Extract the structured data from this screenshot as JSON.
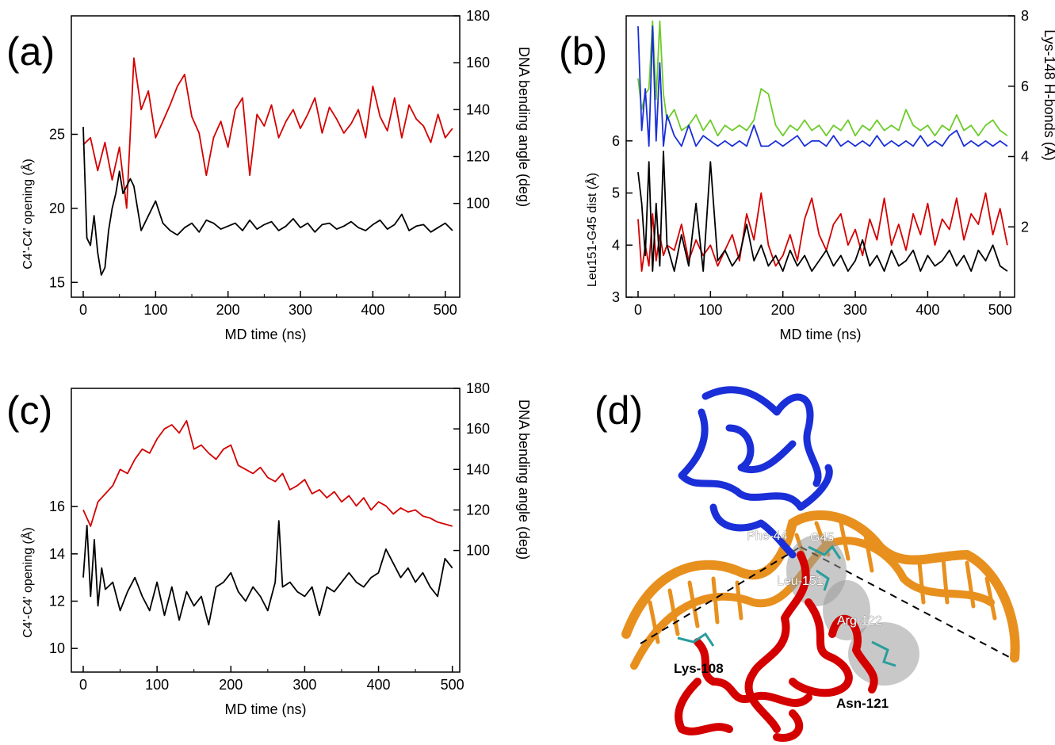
{
  "figure": {
    "panel_labels": [
      "(a)",
      "(b)",
      "(c)",
      "(d)"
    ]
  },
  "chart_data": [
    {
      "panel": "(a)",
      "type": "line",
      "xlabel": "MD time (ns)",
      "ylabel_left": "C4'-C4' opening (Å)",
      "ylabel_right": "DNA bending angle (deg)",
      "xlim": [
        0,
        520
      ],
      "ylim_left": [
        14,
        33
      ],
      "ylim_right": [
        60,
        180
      ],
      "xticks": [
        0,
        100,
        200,
        300,
        400,
        500
      ],
      "yticks_left": [
        15,
        20,
        25
      ],
      "yticks_right": [
        100,
        120,
        140,
        160,
        180
      ],
      "colors": {
        "bending": "#d40000",
        "opening": "#000000"
      },
      "series": [
        {
          "axis": "right",
          "color": "#d40000",
          "x": [
            0,
            10,
            20,
            30,
            40,
            50,
            60,
            70,
            80,
            90,
            100,
            110,
            120,
            130,
            140,
            150,
            160,
            170,
            180,
            190,
            200,
            210,
            220,
            230,
            240,
            250,
            260,
            270,
            280,
            290,
            300,
            310,
            320,
            330,
            340,
            350,
            360,
            370,
            380,
            390,
            400,
            410,
            420,
            430,
            440,
            450,
            460,
            470,
            480,
            490,
            500,
            510
          ],
          "values": [
            125,
            128,
            114,
            126,
            110,
            124,
            98,
            162,
            140,
            148,
            128,
            135,
            142,
            150,
            155,
            137,
            130,
            112,
            128,
            135,
            124,
            140,
            145,
            112,
            138,
            133,
            142,
            128,
            135,
            140,
            132,
            138,
            145,
            130,
            141,
            136,
            130,
            134,
            140,
            128,
            150,
            137,
            131,
            145,
            128,
            142,
            136,
            133,
            126,
            138,
            128,
            132
          ]
        },
        {
          "axis": "left",
          "color": "#000000",
          "x": [
            0,
            5,
            10,
            15,
            20,
            25,
            30,
            35,
            40,
            45,
            50,
            55,
            60,
            65,
            70,
            75,
            80,
            90,
            100,
            110,
            120,
            130,
            140,
            150,
            160,
            170,
            180,
            190,
            200,
            210,
            220,
            230,
            240,
            250,
            260,
            270,
            280,
            290,
            300,
            310,
            320,
            330,
            340,
            350,
            360,
            370,
            380,
            390,
            400,
            410,
            420,
            430,
            440,
            450,
            460,
            470,
            480,
            490,
            500,
            510
          ],
          "values": [
            25.5,
            18,
            17.5,
            19.5,
            17,
            15.5,
            16,
            18.5,
            20,
            21,
            22.5,
            21,
            21.5,
            22,
            21.5,
            20,
            18.5,
            19.5,
            20.5,
            19,
            18.5,
            18.2,
            18.7,
            19,
            18.4,
            19.2,
            19,
            18.6,
            18.8,
            19,
            18.5,
            19.2,
            18.6,
            18.9,
            19.1,
            18.5,
            18.8,
            19.3,
            18.7,
            19,
            18.4,
            18.9,
            19,
            18.6,
            18.8,
            19.1,
            18.7,
            18.5,
            18.9,
            19.2,
            18.6,
            18.9,
            19.6,
            18.5,
            18.8,
            18.9,
            18.4,
            18.7,
            19,
            18.5
          ]
        }
      ]
    },
    {
      "panel": "(b)",
      "type": "line",
      "xlabel": "MD time (ns)",
      "ylabel_left": "Leu151-G45 dist (Å)",
      "ylabel_right": "Lys-148 H-bonds (Å)",
      "xlim": [
        0,
        520
      ],
      "ylim_left": [
        3,
        8.4
      ],
      "ylim_right": [
        0,
        8
      ],
      "xticks": [
        0,
        100,
        200,
        300,
        400,
        500
      ],
      "yticks_left": [
        3,
        4,
        5,
        6
      ],
      "yticks_right": [
        2,
        4,
        6,
        8
      ],
      "colors": {
        "green": "#6ccc2a",
        "blue": "#1a2fd8",
        "red": "#d40000",
        "black": "#000000"
      },
      "series": [
        {
          "axis": "left",
          "color": "#6ccc2a",
          "x": [
            0,
            5,
            10,
            15,
            20,
            25,
            30,
            35,
            40,
            50,
            60,
            70,
            80,
            90,
            100,
            110,
            120,
            130,
            140,
            150,
            160,
            170,
            180,
            190,
            200,
            210,
            220,
            230,
            240,
            250,
            260,
            270,
            280,
            290,
            300,
            310,
            320,
            330,
            340,
            350,
            360,
            370,
            380,
            390,
            400,
            410,
            420,
            430,
            440,
            450,
            460,
            470,
            480,
            490,
            500,
            510
          ],
          "values": [
            7.2,
            6.6,
            6.9,
            7.0,
            8.3,
            6.8,
            8.3,
            6.9,
            6.4,
            6.6,
            6.2,
            6.3,
            6.5,
            6.2,
            6.4,
            6.1,
            6.3,
            6.2,
            6.3,
            6.2,
            6.4,
            7.0,
            6.9,
            6.3,
            6.1,
            6.3,
            6.2,
            6.4,
            6.2,
            6.3,
            6.1,
            6.3,
            6.2,
            6.4,
            6.1,
            6.3,
            6.2,
            6.4,
            6.2,
            6.3,
            6.2,
            6.6,
            6.3,
            6.2,
            6.3,
            6.1,
            6.3,
            6.2,
            6.5,
            6.2,
            6.3,
            6.1,
            6.3,
            6.4,
            6.2,
            6.1
          ]
        },
        {
          "axis": "left",
          "color": "#1a2fd8",
          "x": [
            0,
            5,
            10,
            15,
            20,
            25,
            30,
            35,
            40,
            50,
            60,
            70,
            80,
            90,
            100,
            110,
            120,
            130,
            140,
            150,
            160,
            170,
            180,
            190,
            200,
            210,
            220,
            230,
            240,
            250,
            260,
            270,
            280,
            290,
            300,
            310,
            320,
            330,
            340,
            350,
            360,
            370,
            380,
            390,
            400,
            410,
            420,
            430,
            440,
            450,
            460,
            470,
            480,
            490,
            500,
            510
          ],
          "values": [
            8.2,
            6.2,
            7.0,
            5.9,
            8.2,
            6.0,
            7.5,
            5.9,
            6.5,
            6.1,
            5.9,
            6.3,
            5.9,
            6.1,
            6.0,
            5.9,
            6.0,
            5.9,
            6.0,
            5.9,
            6.3,
            5.9,
            5.9,
            6.0,
            5.9,
            6.0,
            6.1,
            5.9,
            6.0,
            6.0,
            5.9,
            6.1,
            5.9,
            6.0,
            5.9,
            6.0,
            5.9,
            6.1,
            5.9,
            6.0,
            5.9,
            6.0,
            5.9,
            6.1,
            5.9,
            6.0,
            5.9,
            6.1,
            6.2,
            5.9,
            6.0,
            5.9,
            6.0,
            5.9,
            6.0,
            5.9
          ]
        },
        {
          "axis": "left",
          "color": "#d40000",
          "x": [
            0,
            5,
            10,
            15,
            20,
            25,
            30,
            35,
            40,
            50,
            60,
            70,
            80,
            90,
            100,
            110,
            120,
            130,
            140,
            150,
            160,
            170,
            180,
            190,
            200,
            210,
            220,
            230,
            240,
            250,
            260,
            270,
            280,
            290,
            300,
            310,
            320,
            330,
            340,
            350,
            360,
            370,
            380,
            390,
            400,
            410,
            420,
            430,
            440,
            450,
            460,
            470,
            480,
            490,
            500,
            510
          ],
          "values": [
            4.5,
            3.5,
            4.0,
            3.6,
            4.6,
            3.7,
            4.2,
            3.8,
            4.0,
            3.9,
            4.4,
            3.7,
            4.1,
            3.8,
            4.0,
            3.6,
            3.9,
            4.2,
            3.7,
            4.6,
            4.1,
            5.0,
            4.0,
            3.6,
            3.8,
            4.2,
            3.7,
            4.5,
            4.9,
            4.2,
            3.9,
            4.4,
            4.6,
            4.0,
            4.3,
            3.8,
            4.5,
            4.1,
            4.9,
            4.0,
            4.4,
            3.9,
            4.6,
            4.2,
            4.8,
            4.0,
            4.5,
            4.3,
            4.9,
            4.1,
            4.6,
            4.4,
            5.0,
            4.2,
            4.7,
            4.0
          ]
        },
        {
          "axis": "left",
          "color": "#000000",
          "x": [
            0,
            5,
            10,
            15,
            20,
            25,
            30,
            35,
            40,
            50,
            60,
            70,
            80,
            90,
            100,
            110,
            120,
            130,
            140,
            150,
            160,
            170,
            180,
            190,
            200,
            210,
            220,
            230,
            240,
            250,
            260,
            270,
            280,
            290,
            300,
            310,
            320,
            330,
            340,
            350,
            360,
            370,
            380,
            390,
            400,
            410,
            420,
            430,
            440,
            450,
            460,
            470,
            480,
            490,
            500,
            510
          ],
          "values": [
            5.4,
            4.8,
            3.8,
            5.6,
            3.5,
            4.8,
            3.6,
            5.8,
            4.0,
            3.5,
            4.2,
            3.6,
            4.8,
            3.5,
            5.6,
            3.7,
            3.9,
            3.6,
            3.8,
            4.4,
            3.7,
            4.0,
            3.6,
            3.8,
            3.5,
            3.9,
            3.6,
            3.8,
            3.5,
            3.7,
            3.9,
            3.6,
            3.8,
            3.5,
            3.7,
            4.1,
            3.6,
            3.8,
            3.5,
            3.9,
            3.6,
            3.7,
            3.9,
            3.5,
            3.8,
            3.6,
            3.7,
            3.9,
            3.6,
            3.8,
            3.5,
            3.9,
            3.7,
            4.0,
            3.6,
            3.5
          ]
        }
      ]
    },
    {
      "panel": "(c)",
      "type": "line",
      "xlabel": "MD time (ns)",
      "ylabel_left": "C4'-C4' opening (Å)",
      "ylabel_right": "DNA bending angle (deg)",
      "xlim": [
        0,
        510
      ],
      "ylim_left": [
        9,
        21
      ],
      "ylim_right": [
        40,
        180
      ],
      "xticks": [
        0,
        100,
        200,
        300,
        400,
        500
      ],
      "yticks_left": [
        10,
        12,
        14,
        16
      ],
      "yticks_right": [
        100,
        120,
        140,
        160,
        180
      ],
      "colors": {
        "bending": "#d40000",
        "opening": "#000000"
      },
      "series": [
        {
          "axis": "right",
          "color": "#d40000",
          "x": [
            0,
            10,
            20,
            30,
            40,
            50,
            60,
            70,
            80,
            90,
            100,
            110,
            120,
            130,
            140,
            150,
            160,
            170,
            180,
            190,
            200,
            210,
            220,
            230,
            240,
            250,
            260,
            270,
            280,
            290,
            300,
            310,
            320,
            330,
            340,
            350,
            360,
            370,
            380,
            390,
            400,
            410,
            420,
            430,
            440,
            450,
            460,
            470,
            480,
            490,
            500
          ],
          "values": [
            120,
            112,
            124,
            128,
            132,
            140,
            138,
            145,
            150,
            148,
            155,
            160,
            162,
            158,
            164,
            150,
            152,
            148,
            145,
            150,
            152,
            142,
            140,
            138,
            141,
            136,
            134,
            138,
            130,
            132,
            135,
            128,
            130,
            126,
            129,
            124,
            127,
            122,
            126,
            120,
            124,
            122,
            118,
            121,
            119,
            120,
            117,
            116,
            114,
            113,
            112
          ]
        },
        {
          "axis": "left",
          "color": "#000000",
          "x": [
            0,
            5,
            10,
            15,
            20,
            25,
            30,
            40,
            50,
            60,
            70,
            80,
            90,
            100,
            110,
            120,
            130,
            140,
            150,
            160,
            170,
            180,
            190,
            200,
            210,
            220,
            230,
            240,
            250,
            260,
            265,
            270,
            280,
            290,
            300,
            310,
            320,
            330,
            340,
            350,
            360,
            370,
            380,
            390,
            400,
            410,
            420,
            430,
            440,
            450,
            460,
            470,
            480,
            490,
            500
          ],
          "values": [
            13,
            15.2,
            12.2,
            14.6,
            11.8,
            13.4,
            12.5,
            12.8,
            11.6,
            12.4,
            13,
            12.2,
            11.6,
            12.8,
            11.4,
            12.6,
            11.2,
            12.4,
            11.8,
            12.2,
            11,
            12.6,
            12.8,
            13.2,
            12.4,
            12,
            12.6,
            12.2,
            11.6,
            12.8,
            15.4,
            12.6,
            12.8,
            12.4,
            12.2,
            12.6,
            11.4,
            12.6,
            12.4,
            12.8,
            13.2,
            12.8,
            12.6,
            13,
            13.2,
            14.2,
            13.6,
            13,
            13.4,
            12.8,
            13.2,
            12.6,
            12.2,
            13.8,
            13.4
          ]
        }
      ]
    }
  ],
  "structure_panel": {
    "residue_labels": [
      "Phe-44",
      "G45",
      "Leu-151",
      "Arg-122",
      "Lys-108",
      "Asn-121"
    ],
    "colors": {
      "protein_top": "#1a2fd8",
      "protein_bottom": "#d40000",
      "dna": "#e8901e",
      "surface": "#9a9a9a"
    }
  }
}
